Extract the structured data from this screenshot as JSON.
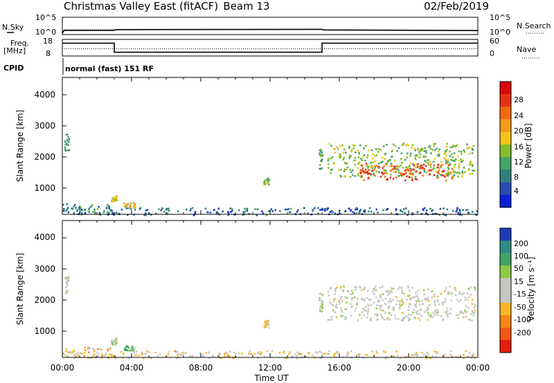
{
  "header": {
    "station": "Christmas Valley East (fitACF)",
    "beam": "Beam 13",
    "date": "02/Feb/2019"
  },
  "noise_panel": {
    "left_label": "N.Sky",
    "right_label": "N.Search",
    "left_ticks": [
      "10^5",
      "10^0"
    ],
    "right_ticks": [
      "10^5",
      "10^0"
    ]
  },
  "freq_panel": {
    "left_label_1": "Freq.",
    "left_label_2": "[MHz]",
    "left_ticks": [
      "18",
      "8"
    ],
    "right_label": "Nave",
    "right_ticks": [
      "60",
      "0"
    ],
    "cpid_label": "CPID",
    "cpid_text": "normal (fast) 151 RF"
  },
  "time_axis": {
    "label": "Time UT",
    "ticks": [
      "00:00",
      "04:00",
      "08:00",
      "12:00",
      "16:00",
      "20:00",
      "00:00"
    ]
  },
  "power_panel": {
    "ylabel": "Slant Range [km]",
    "yticks": [
      "4000",
      "3000",
      "2000",
      "1000"
    ],
    "colorbar_label": "Power [dB]",
    "colorbar_ticks": [
      "28",
      "24",
      "20",
      "16",
      "12",
      "8",
      "4"
    ]
  },
  "velocity_panel": {
    "ylabel": "Slant Range [km]",
    "yticks": [
      "4000",
      "3000",
      "2000",
      "1000"
    ],
    "colorbar_label": "Velocity [m s⁻¹]",
    "colorbar_ticks": [
      "200",
      "100",
      "50",
      "15",
      "-15",
      "-50",
      "-100",
      "-200"
    ]
  },
  "chart_data": [
    {
      "type": "line",
      "name": "noise",
      "x_hours": [
        0,
        0.1,
        3,
        3.1,
        15,
        15.1,
        24
      ],
      "sky_log": [
        0.2,
        1.2,
        1.2,
        1.4,
        1.5,
        1.3,
        1.1
      ],
      "search_log": [
        0.1,
        1.0,
        1.0,
        1.3,
        1.4,
        1.2,
        1.0
      ],
      "ylim_log": [
        0,
        5
      ]
    },
    {
      "type": "line",
      "name": "frequency",
      "steps": [
        {
          "x0": 0,
          "x1": 3,
          "freq_mhz": 16
        },
        {
          "x0": 3,
          "x1": 15,
          "freq_mhz": 10
        },
        {
          "x0": 15,
          "x1": 24,
          "freq_mhz": 16
        }
      ],
      "nave": 26,
      "freq_lim": [
        8,
        18
      ],
      "nave_lim": [
        0,
        60
      ]
    },
    {
      "type": "heatmap",
      "name": "power",
      "x_range_hours": [
        0,
        24
      ],
      "y_range_km": [
        180,
        4600
      ],
      "value_range_db": [
        0,
        30
      ],
      "colors": [
        "#0a1fd6",
        "#274bb0",
        "#2f7f7a",
        "#43a46a",
        "#82bd2c",
        "#f2c418",
        "#f49a1a",
        "#f06a12",
        "#e63013",
        "#d80a0a"
      ],
      "regions": [
        {
          "t0": 0.0,
          "t1": 2.9,
          "r0": 240,
          "r1": 540,
          "val": 9
        },
        {
          "t0": 0.0,
          "t1": 24.0,
          "r0": 180,
          "r1": 420,
          "val": 6
        },
        {
          "t0": 0.1,
          "t1": 0.35,
          "r0": 2250,
          "r1": 2800,
          "val": 10
        },
        {
          "t0": 2.8,
          "t1": 3.1,
          "r0": 620,
          "r1": 820,
          "val": 17
        },
        {
          "t0": 3.5,
          "t1": 4.2,
          "r0": 420,
          "r1": 580,
          "val": 18
        },
        {
          "t0": 11.6,
          "t1": 11.9,
          "r0": 1150,
          "r1": 1400,
          "val": 13
        },
        {
          "t0": 14.8,
          "t1": 15.0,
          "r0": 1650,
          "r1": 2300,
          "val": 11
        },
        {
          "t0": 15.3,
          "t1": 23.8,
          "r0": 1400,
          "r1": 2500,
          "val": 13
        },
        {
          "t0": 17.0,
          "t1": 22.5,
          "r0": 1300,
          "r1": 1850,
          "val": 24
        }
      ]
    },
    {
      "type": "heatmap",
      "name": "velocity",
      "x_range_hours": [
        0,
        24
      ],
      "y_range_km": [
        180,
        4600
      ],
      "colors": [
        "#e31c0e",
        "#f0560f",
        "#f4861a",
        "#f6b724",
        "#c6c6c0",
        "#c6c6c0",
        "#8acb47",
        "#3fa46a",
        "#2c8a86",
        "#1d3ebb"
      ],
      "regions": [
        {
          "t0": 0.0,
          "t1": 2.9,
          "r0": 240,
          "r1": 540,
          "val": -60
        },
        {
          "t0": 0.0,
          "t1": 24.0,
          "r0": 180,
          "r1": 420,
          "val": -40
        },
        {
          "t0": 0.1,
          "t1": 0.35,
          "r0": 2250,
          "r1": 2800,
          "val": 0
        },
        {
          "t0": 2.8,
          "t1": 3.1,
          "r0": 620,
          "r1": 820,
          "val": 40
        },
        {
          "t0": 3.5,
          "t1": 4.2,
          "r0": 420,
          "r1": 580,
          "val": 90
        },
        {
          "t0": 11.6,
          "t1": 11.9,
          "r0": 1150,
          "r1": 1400,
          "val": -40
        },
        {
          "t0": 14.8,
          "t1": 15.0,
          "r0": 1650,
          "r1": 2300,
          "val": 30
        },
        {
          "t0": 15.3,
          "t1": 23.8,
          "r0": 1400,
          "r1": 2500,
          "val": 0
        }
      ]
    }
  ]
}
